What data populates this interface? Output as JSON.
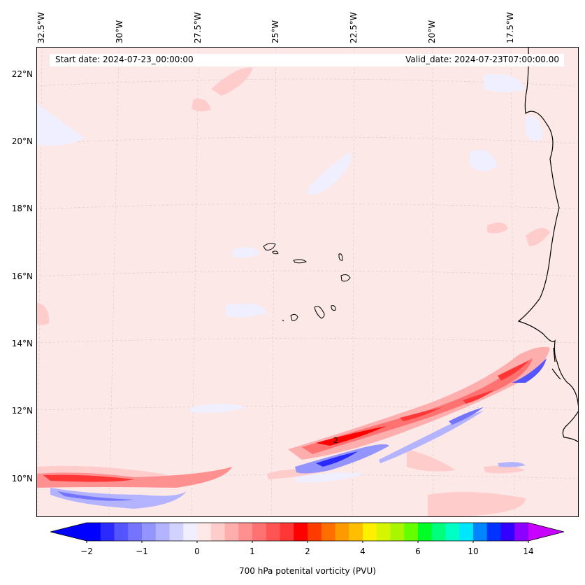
{
  "header": {
    "start_date": "Start date: 2024-07-23_00:00:00",
    "valid_date": "Valid_date: 2024-07-23T07:00:00.00"
  },
  "map": {
    "lon_labels": [
      "32.5°W",
      "30°W",
      "27.5°W",
      "25°W",
      "22.5°W",
      "20°W",
      "17.5°W"
    ],
    "lat_labels": [
      "22°N",
      "20°N",
      "18°N",
      "16°N",
      "14°N",
      "12°N",
      "10°N"
    ],
    "contour_label": "2",
    "background_color": "#fde8e8",
    "coastline_color": "#000000"
  },
  "colorbar": {
    "label": "700 hPa potenital vorticity (PVU)",
    "ticks": [
      "−2",
      "−1",
      "0",
      "1",
      "2",
      "4",
      "6",
      "10",
      "14"
    ],
    "colors": [
      "#0000ff",
      "#2a2aff",
      "#5555ff",
      "#7474ff",
      "#9494ff",
      "#b3b3ff",
      "#d2d2ff",
      "#efefff",
      "#ffe8e8",
      "#ffcccc",
      "#ffaeae",
      "#ff9090",
      "#ff7272",
      "#ff5454",
      "#ff3636",
      "#ff0000",
      "#ff3c00",
      "#ff6f00",
      "#ff9900",
      "#ffbf00",
      "#fff000",
      "#d6f500",
      "#aaf500",
      "#66ff00",
      "#00ff26",
      "#00ff7a",
      "#00ffc4",
      "#00e6ff",
      "#0085ff",
      "#0033ff",
      "#3300ff",
      "#8c00ff"
    ],
    "extend_low_color": "#0000ff",
    "extend_high_color": "#c700ff"
  }
}
